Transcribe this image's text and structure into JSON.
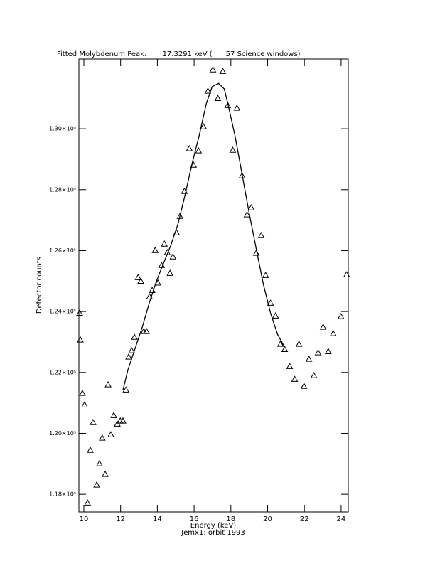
{
  "chart_data": {
    "type": "scatter",
    "title": "Fitted Molybdenum Peak:       17.3291 keV (      57 Science windows)",
    "x_label": "Energy (keV)",
    "subtitle": "Jemx1: orbit 1993",
    "y_label": "Detector counts",
    "xlim": [
      9.73,
      24.39
    ],
    "ylim": [
      117420,
      132290
    ],
    "xticks": [
      10,
      12,
      14,
      16,
      18,
      20,
      22,
      24
    ],
    "yticks": [
      {
        "value": 118000,
        "label": "1.18×10⁵"
      },
      {
        "value": 120000,
        "label": "1.20×10⁵"
      },
      {
        "value": 122000,
        "label": "1.22×10⁵"
      },
      {
        "value": 124000,
        "label": "1.24×10⁵"
      },
      {
        "value": 126000,
        "label": "1.26×10⁵"
      },
      {
        "value": 128000,
        "label": "1.28×10⁵"
      },
      {
        "value": 130000,
        "label": "1.30×10⁵"
      }
    ],
    "color": "#000000",
    "series": [
      {
        "kind": "scatter",
        "marker": "triangle",
        "x": [
          9.77,
          9.81,
          9.92,
          10.04,
          10.2,
          10.35,
          10.5,
          10.7,
          10.85,
          11.0,
          11.16,
          11.32,
          11.47,
          11.63,
          11.82,
          11.98,
          12.13,
          12.29,
          12.44,
          12.6,
          12.75,
          12.95,
          13.1,
          13.26,
          13.41,
          13.57,
          13.72,
          13.88,
          14.03,
          14.23,
          14.38,
          14.54,
          14.69,
          14.85,
          15.04,
          15.23,
          15.47,
          15.74,
          15.97,
          16.24,
          16.51,
          16.75,
          17.02,
          17.29,
          17.56,
          17.83,
          18.1,
          18.33,
          18.61,
          18.88,
          19.11,
          19.38,
          19.65,
          19.89,
          20.16,
          20.43,
          20.7,
          20.93,
          21.2,
          21.47,
          21.71,
          21.98,
          22.25,
          22.52,
          22.75,
          23.02,
          23.3,
          23.57,
          23.99,
          24.3
        ],
        "values": [
          123950,
          123070,
          121320,
          120940,
          117720,
          119450,
          120360,
          118310,
          119010,
          119850,
          118660,
          121600,
          119960,
          120590,
          120310,
          120410,
          120410,
          121430,
          122510,
          122720,
          123160,
          125120,
          125000,
          123350,
          123350,
          124490,
          124700,
          126010,
          124940,
          125520,
          126220,
          125940,
          125260,
          125800,
          126590,
          127130,
          127950,
          129350,
          128810,
          129280,
          130070,
          131240,
          131940,
          131000,
          131890,
          130770,
          129300,
          130680,
          128460,
          127180,
          127410,
          125920,
          126500,
          125190,
          124280,
          123860,
          122930,
          122760,
          122200,
          121780,
          122930,
          121550,
          122440,
          121900,
          122650,
          123490,
          122690,
          123280,
          123840,
          125210
        ]
      },
      {
        "kind": "line",
        "x": [
          12.13,
          12.4,
          12.79,
          13.18,
          13.57,
          13.95,
          14.34,
          14.73,
          15.12,
          15.5,
          15.89,
          16.28,
          16.67,
          16.98,
          17.33,
          17.64,
          17.83,
          18.22,
          18.61,
          19.0,
          19.38,
          19.77,
          20.16,
          20.54,
          20.93
        ],
        "values": [
          121430,
          122090,
          122790,
          123490,
          124300,
          125000,
          125590,
          126170,
          126870,
          127810,
          128860,
          129790,
          130840,
          131380,
          131490,
          131310,
          130840,
          129790,
          128510,
          127220,
          126060,
          124890,
          123950,
          123250,
          122830
        ]
      }
    ]
  }
}
